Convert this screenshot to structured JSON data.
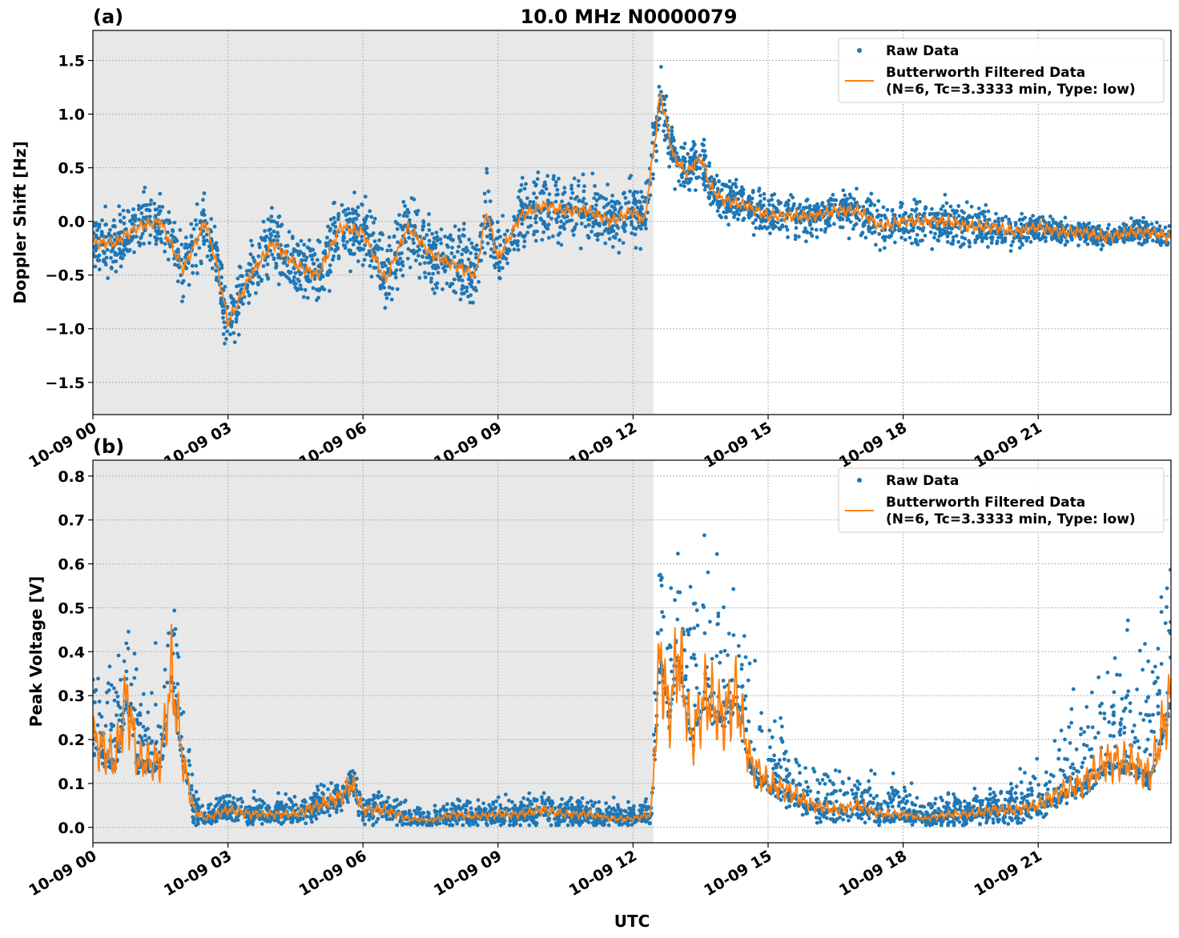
{
  "title": "10.0 MHz N0000079",
  "colors": {
    "raw": "#1f77b4",
    "filtered": "#ff7f0e",
    "night_shade": "#e8e8e8"
  },
  "chart_data": [
    {
      "panel_label": "(a)",
      "type": "scatter+line",
      "ylabel": "Doppler Shift [Hz]",
      "xlabel": "UTC",
      "xlim_hours": [
        0,
        23.95
      ],
      "ylim": [
        -1.8,
        1.78
      ],
      "yticks": [
        -1.5,
        -1.0,
        -0.5,
        0.0,
        0.5,
        1.0,
        1.5
      ],
      "ytick_labels": [
        "−1.5",
        "−1.0",
        "−0.5",
        "0.0",
        "0.5",
        "1.0",
        "1.5"
      ],
      "xticks_hours": [
        0,
        3,
        6,
        9,
        12,
        15,
        18,
        21
      ],
      "xtick_labels": [
        "10-09 00",
        "10-09 03",
        "10-09 06",
        "10-09 09",
        "10-09 12",
        "10-09 15",
        "10-09 18",
        "10-09 21"
      ],
      "shaded_interval_hours": [
        0,
        12.45
      ],
      "grid": true,
      "legend_position": "top-right",
      "legend": {
        "raw": "Raw Data",
        "filtered_line1": "Butterworth Filtered Data",
        "filtered_line2": "(N=6, Tc=3.3333 min, Type: low)"
      },
      "filtered": {
        "x": [
          0,
          0.5,
          1,
          1.5,
          2,
          2.5,
          2.75,
          3,
          3.5,
          4,
          4.5,
          5,
          5.5,
          6,
          6.5,
          7,
          7.5,
          8,
          8.5,
          8.75,
          9,
          9.5,
          10,
          10.5,
          11,
          11.5,
          12,
          12.25,
          12.5,
          12.6,
          12.9,
          13.2,
          13.5,
          13.75,
          14,
          14.5,
          15,
          15.5,
          16,
          16.5,
          17,
          17.5,
          18,
          18.5,
          19,
          19.5,
          20,
          20.5,
          21,
          21.5,
          22,
          22.5,
          23,
          23.5,
          23.95
        ],
        "y": [
          -0.2,
          -0.2,
          -0.05,
          0.0,
          -0.45,
          0.0,
          -0.4,
          -0.95,
          -0.5,
          -0.2,
          -0.4,
          -0.5,
          -0.05,
          -0.1,
          -0.55,
          -0.05,
          -0.3,
          -0.4,
          -0.5,
          0.1,
          -0.35,
          0.05,
          0.15,
          0.1,
          0.1,
          0.0,
          0.1,
          0.0,
          0.8,
          1.2,
          0.6,
          0.45,
          0.6,
          0.3,
          0.2,
          0.15,
          0.05,
          0.05,
          0.05,
          0.1,
          0.1,
          -0.05,
          0.0,
          0.0,
          0.0,
          -0.05,
          -0.05,
          -0.1,
          -0.05,
          -0.1,
          -0.1,
          -0.15,
          -0.1,
          -0.1,
          -0.15
        ]
      },
      "raw_spread": {
        "x": [
          0,
          3,
          6,
          9,
          12.3,
          12.6,
          13.5,
          14.5,
          17,
          19,
          21,
          23.95
        ],
        "halfwidth": [
          0.35,
          0.4,
          0.45,
          0.45,
          0.35,
          0.3,
          0.3,
          0.25,
          0.25,
          0.3,
          0.15,
          0.15
        ]
      }
    },
    {
      "panel_label": "(b)",
      "type": "scatter+line",
      "ylabel": "Peak Voltage [V]",
      "xlabel": "UTC",
      "xlim_hours": [
        0,
        23.95
      ],
      "ylim": [
        -0.035,
        0.836
      ],
      "yticks": [
        0.0,
        0.1,
        0.2,
        0.3,
        0.4,
        0.5,
        0.6,
        0.7,
        0.8
      ],
      "ytick_labels": [
        "0.0",
        "0.1",
        "0.2",
        "0.3",
        "0.4",
        "0.5",
        "0.6",
        "0.7",
        "0.8"
      ],
      "xticks_hours": [
        0,
        3,
        6,
        9,
        12,
        15,
        18,
        21
      ],
      "xtick_labels": [
        "10-09 00",
        "10-09 03",
        "10-09 06",
        "10-09 09",
        "10-09 12",
        "10-09 15",
        "10-09 18",
        "10-09 21"
      ],
      "shaded_interval_hours": [
        0,
        12.45
      ],
      "grid": true,
      "legend_position": "top-right",
      "legend": {
        "raw": "Raw Data",
        "filtered_line1": "Butterworth Filtered Data",
        "filtered_line2": "(N=6, Tc=3.3333 min, Type: low)"
      },
      "filtered": {
        "x": [
          0,
          0.5,
          0.75,
          1,
          1.5,
          1.75,
          2,
          2.25,
          2.5,
          3,
          3.5,
          4,
          4.5,
          5,
          5.5,
          5.75,
          6,
          6.5,
          7,
          7.5,
          8,
          8.5,
          9,
          9.5,
          10,
          10.5,
          11,
          11.5,
          12,
          12.4,
          12.6,
          12.8,
          13,
          13.3,
          13.6,
          14,
          14.3,
          14.6,
          15,
          15.5,
          16,
          16.5,
          17,
          17.5,
          18,
          18.5,
          19,
          19.5,
          20,
          20.5,
          21,
          21.5,
          22,
          22.5,
          23,
          23.5,
          23.95
        ],
        "y": [
          0.2,
          0.15,
          0.3,
          0.15,
          0.15,
          0.35,
          0.15,
          0.04,
          0.02,
          0.04,
          0.03,
          0.03,
          0.03,
          0.05,
          0.07,
          0.1,
          0.04,
          0.04,
          0.02,
          0.015,
          0.03,
          0.025,
          0.03,
          0.03,
          0.04,
          0.03,
          0.03,
          0.02,
          0.02,
          0.03,
          0.4,
          0.25,
          0.4,
          0.2,
          0.3,
          0.25,
          0.3,
          0.15,
          0.1,
          0.08,
          0.05,
          0.04,
          0.05,
          0.03,
          0.03,
          0.02,
          0.03,
          0.03,
          0.04,
          0.04,
          0.05,
          0.08,
          0.1,
          0.15,
          0.15,
          0.12,
          0.3
        ]
      },
      "raw_spread": {
        "x": [
          0,
          2,
          2.3,
          5.5,
          6,
          12.4,
          12.6,
          14.5,
          15.5,
          20,
          21,
          22.5,
          23.95
        ],
        "halfwidth": [
          0.3,
          0.3,
          0.05,
          0.06,
          0.05,
          0.05,
          0.5,
          0.4,
          0.15,
          0.06,
          0.15,
          0.35,
          0.5
        ]
      }
    }
  ]
}
